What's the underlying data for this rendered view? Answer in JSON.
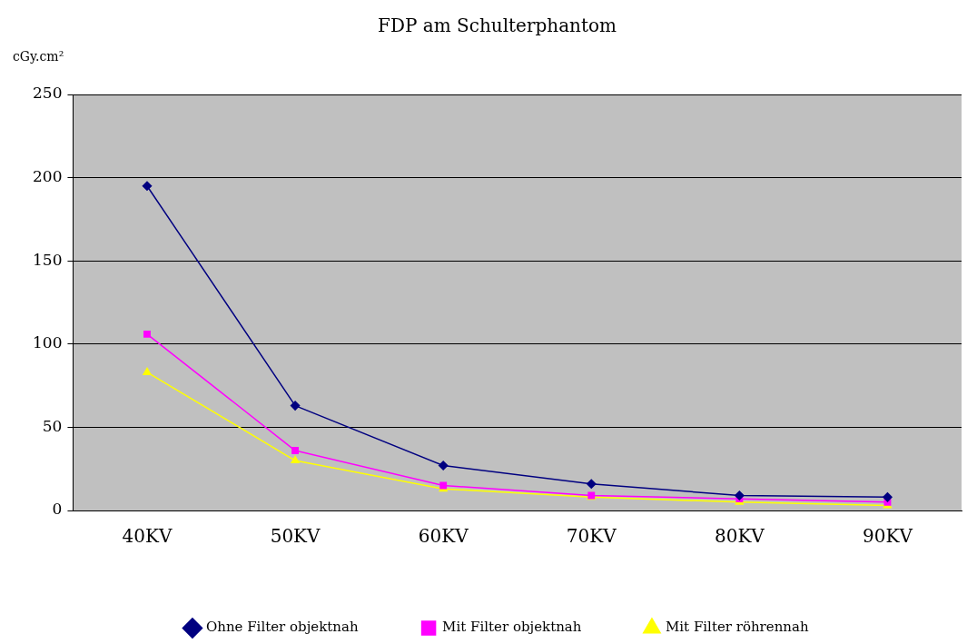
{
  "chart_data": {
    "type": "line",
    "title": "FDP am Schulterphantom",
    "ylabel": "cGy.cm²",
    "categories": [
      "40KV",
      "50KV",
      "60KV",
      "70KV",
      "80KV",
      "90KV"
    ],
    "series": [
      {
        "name": "Ohne Filter objektnah",
        "color": "#000080",
        "marker": "diamond",
        "values": [
          195,
          63,
          27,
          16,
          9,
          8
        ]
      },
      {
        "name": "Mit Filter objektnah",
        "color": "#ff00ff",
        "marker": "square",
        "values": [
          106,
          36,
          15,
          9,
          7,
          5
        ]
      },
      {
        "name": "Mit Filter röhrennah",
        "color": "#ffff00",
        "marker": "triangle",
        "values": [
          83,
          30,
          13,
          8,
          5,
          3
        ]
      }
    ],
    "ylim": [
      0,
      250
    ],
    "yticks": [
      0,
      50,
      100,
      150,
      200,
      250
    ],
    "grid": "y",
    "legend": "bottom"
  }
}
